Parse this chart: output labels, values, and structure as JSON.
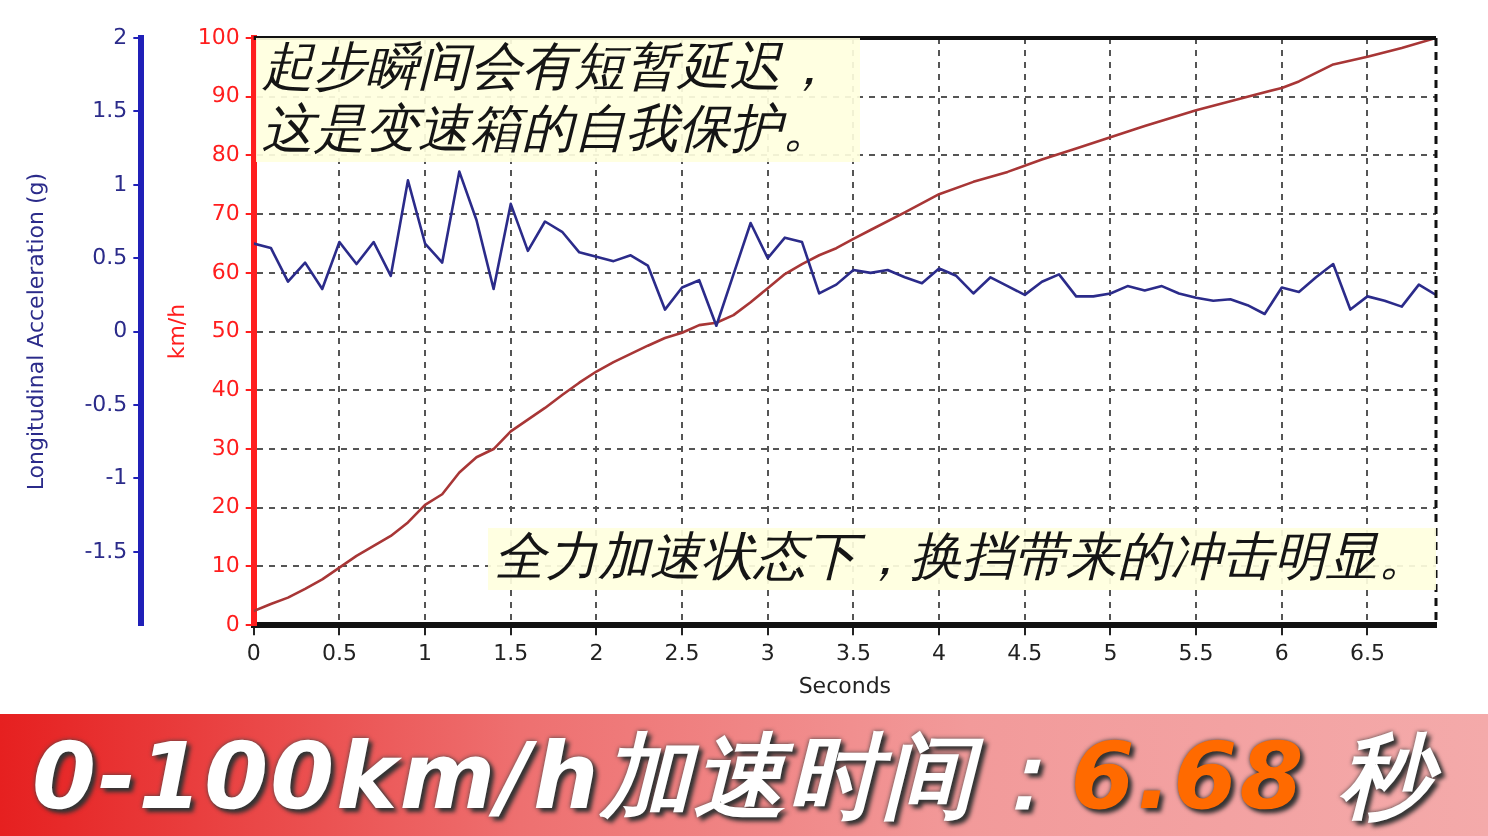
{
  "chart_data": {
    "type": "line",
    "title": "0-100km/h加速时间：6.68 秒",
    "xlabel": "Seconds",
    "ylabel": "km/h",
    "y2label": "Longitudinal Acceleration (g)",
    "annotations": [
      "起步瞬间会有短暂延迟，这是变速箱的自我保护。",
      "全力加速状态下，换挡带来的冲击明显。"
    ],
    "x": [
      0,
      0.1,
      0.2,
      0.3,
      0.4,
      0.5,
      0.6,
      0.7,
      0.8,
      0.9,
      1,
      1.1,
      1.2,
      1.3,
      1.4,
      1.5,
      1.6,
      1.7,
      1.8,
      1.9,
      2,
      2.1,
      2.2,
      2.3,
      2.4,
      2.5,
      2.6,
      2.7,
      2.8,
      2.9,
      3,
      3.1,
      3.2,
      3.3,
      3.4,
      3.5,
      3.6,
      3.7,
      3.8,
      3.9,
      4,
      4.1,
      4.2,
      4.3,
      4.4,
      4.5,
      4.6,
      4.7,
      4.8,
      4.9,
      5,
      5.1,
      5.2,
      5.3,
      5.4,
      5.5,
      5.6,
      5.7,
      5.8,
      5.9,
      6,
      6.1,
      6.2,
      6.3,
      6.4,
      6.5,
      6.6,
      6.7,
      6.8,
      6.9
    ],
    "series": [
      {
        "color": "#2b2b8a",
        "axis": "y2",
        "values": [
          0.6,
          0.57,
          0.34,
          0.47,
          0.29,
          0.61,
          0.46,
          0.61,
          0.38,
          1.03,
          0.6,
          0.47,
          1.09,
          0.76,
          0.29,
          0.87,
          0.55,
          0.75,
          0.68,
          0.54,
          0.51,
          0.48,
          0.52,
          0.45,
          0.15,
          0.3,
          0.35,
          0.04,
          0.39,
          0.74,
          0.5,
          0.64,
          0.61,
          0.26,
          0.32,
          0.42,
          0.4,
          0.42,
          0.37,
          0.33,
          0.43,
          0.38,
          0.26,
          0.37,
          0.31,
          0.25,
          0.34,
          0.39,
          0.24,
          0.24,
          0.26,
          0.31,
          0.28,
          0.31,
          0.26,
          0.23,
          0.21,
          0.22,
          0.18,
          0.12,
          0.3,
          0.27,
          0.37,
          0.46,
          0.15,
          0.24,
          0.21,
          0.17,
          0.32,
          0.25
        ]
      },
      {
        "color": "#a83636",
        "x": [
          0,
          0.1,
          0.2,
          0.3,
          0.4,
          0.5,
          0.6,
          0.7,
          0.8,
          0.9,
          1,
          1.1,
          1.2,
          1.3,
          1.4,
          1.5,
          1.6,
          1.7,
          1.8,
          1.9,
          2,
          2.1,
          2.2,
          2.3,
          2.4,
          2.5,
          2.6,
          2.7,
          2.8,
          2.9,
          3,
          3.1,
          3.2,
          3.3,
          3.4,
          3.5,
          3.6,
          3.8,
          4,
          4.2,
          4.4,
          4.6,
          4.8,
          5,
          5.2,
          5.5,
          5.8,
          6,
          6.1,
          6.3,
          6.5,
          6.7,
          6.9
        ],
        "values": [
          2.4,
          3.6,
          4.7,
          6.2,
          7.8,
          9.8,
          11.8,
          13.5,
          15.2,
          17.5,
          20.5,
          22.3,
          26,
          28.6,
          30,
          33,
          35,
          37,
          39.2,
          41.3,
          43.2,
          44.8,
          46.2,
          47.6,
          48.9,
          49.8,
          51.1,
          51.5,
          52.8,
          55,
          57.4,
          59.8,
          61.5,
          63,
          64.2,
          65.8,
          67.3,
          70.3,
          73.4,
          75.5,
          77.2,
          79.3,
          81.2,
          83.1,
          85,
          87.7,
          90,
          91.5,
          92.6,
          95.5,
          96.8,
          98.3,
          100
        ]
      }
    ],
    "xlim": [
      0,
      6.9
    ],
    "xticks": [
      0,
      0.5,
      1,
      1.5,
      2,
      2.5,
      3,
      3.5,
      4,
      4.5,
      5,
      5.5,
      6,
      6.5
    ],
    "ylim": [
      0,
      100
    ],
    "yticks": [
      0,
      10,
      20,
      30,
      40,
      50,
      60,
      70,
      80,
      90,
      100
    ],
    "y2lim": [
      -2,
      2
    ],
    "y2ticks": [
      -1.5,
      -1,
      -0.5,
      0,
      0.5,
      1,
      1.5,
      2
    ],
    "grid": true,
    "legend": false
  }
}
